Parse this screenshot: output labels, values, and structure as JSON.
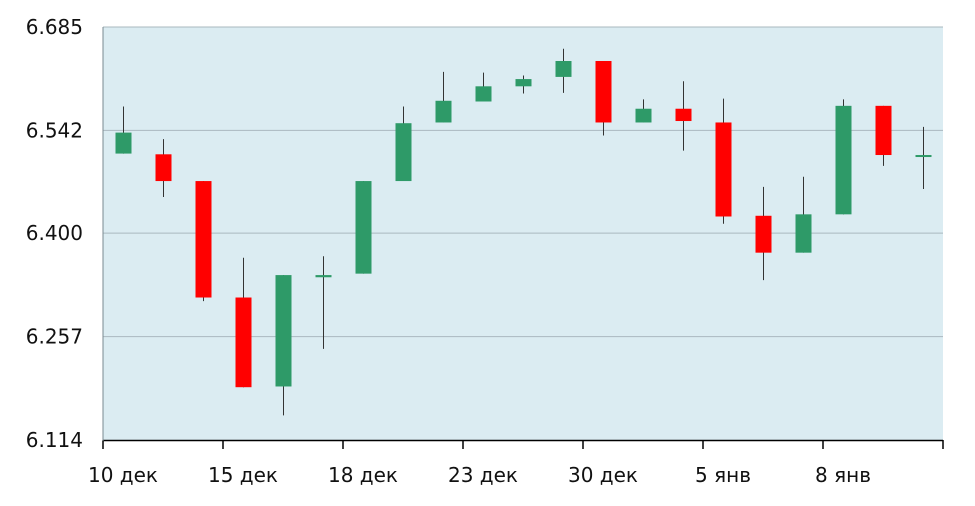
{
  "chart_data": {
    "type": "candlestick",
    "y_ticks": [
      "6.685",
      "6.542",
      "6.400",
      "6.257",
      "6.114"
    ],
    "ylim": [
      6.114,
      6.685
    ],
    "x_tick_labels": [
      "10 дек",
      "15 дек",
      "18 дек",
      "23 дек",
      "30 дек",
      "5 янв",
      "8 янв"
    ],
    "grid": true,
    "colors": {
      "up": "#2e9a68",
      "down": "#ff0000",
      "plot_bg": "#dbecf2",
      "grid": "#aab8bf",
      "axis": "#000000"
    },
    "candles": [
      {
        "open": 6.51,
        "close": 6.539,
        "high": 6.575,
        "low": 6.51
      },
      {
        "open": 6.509,
        "close": 6.472,
        "high": 6.53,
        "low": 6.45
      },
      {
        "open": 6.472,
        "close": 6.311,
        "high": 6.472,
        "low": 6.306
      },
      {
        "open": 6.311,
        "close": 6.187,
        "high": 6.366,
        "low": 6.187
      },
      {
        "open": 6.188,
        "close": 6.342,
        "high": 6.342,
        "low": 6.148
      },
      {
        "open": 6.339,
        "close": 6.342,
        "high": 6.368,
        "low": 6.24
      },
      {
        "open": 6.344,
        "close": 6.472,
        "high": 6.472,
        "low": 6.344
      },
      {
        "open": 6.472,
        "close": 6.552,
        "high": 6.575,
        "low": 6.472
      },
      {
        "open": 6.553,
        "close": 6.583,
        "high": 6.623,
        "low": 6.553
      },
      {
        "open": 6.582,
        "close": 6.603,
        "high": 6.622,
        "low": 6.582
      },
      {
        "open": 6.603,
        "close": 6.613,
        "high": 6.618,
        "low": 6.593
      },
      {
        "open": 6.616,
        "close": 6.638,
        "high": 6.655,
        "low": 6.594
      },
      {
        "open": 6.638,
        "close": 6.553,
        "high": 6.638,
        "low": 6.535
      },
      {
        "open": 6.553,
        "close": 6.572,
        "high": 6.585,
        "low": 6.553
      },
      {
        "open": 6.572,
        "close": 6.555,
        "high": 6.61,
        "low": 6.514
      },
      {
        "open": 6.553,
        "close": 6.423,
        "high": 6.586,
        "low": 6.413
      },
      {
        "open": 6.424,
        "close": 6.373,
        "high": 6.464,
        "low": 6.335
      },
      {
        "open": 6.373,
        "close": 6.426,
        "high": 6.478,
        "low": 6.373
      },
      {
        "open": 6.426,
        "close": 6.576,
        "high": 6.585,
        "low": 6.426
      },
      {
        "open": 6.576,
        "close": 6.508,
        "high": 6.576,
        "low": 6.493
      },
      {
        "open": 6.508,
        "close": 6.508,
        "high": 6.547,
        "low": 6.461
      }
    ]
  }
}
